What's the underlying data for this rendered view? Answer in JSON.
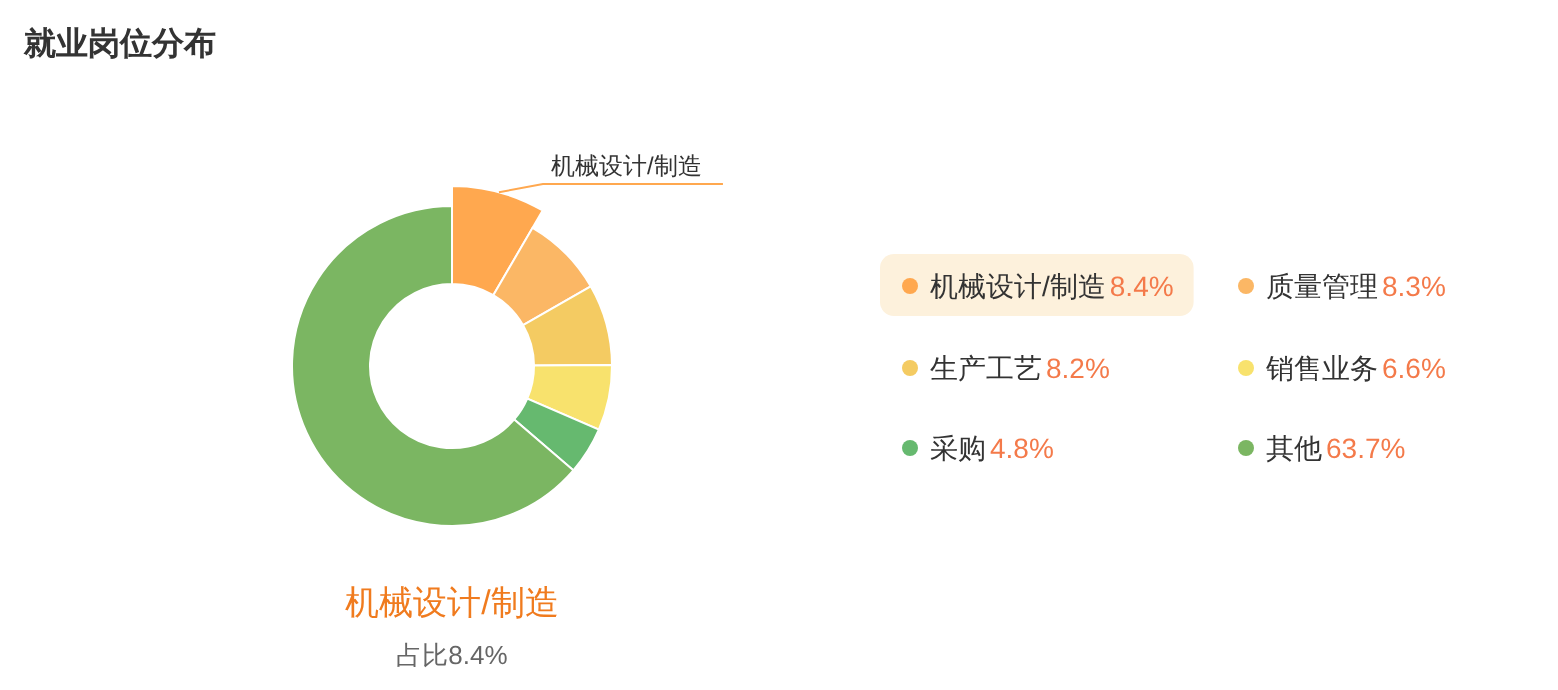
{
  "chart_data": {
    "type": "donut",
    "title": "就业岗位分布",
    "categories": [
      "机械设计/制造",
      "质量管理",
      "生产工艺",
      "销售业务",
      "采购",
      "其他"
    ],
    "values": [
      8.4,
      8.3,
      8.2,
      6.6,
      4.8,
      63.7
    ],
    "colors": [
      "#ffa84f",
      "#fbb765",
      "#f4cb62",
      "#f8e26d",
      "#66b96f",
      "#7bb662"
    ],
    "value_labels": [
      "8.4%",
      "8.3%",
      "8.2%",
      "6.6%",
      "4.8%",
      "63.7%"
    ],
    "legend": "right",
    "annotations": [
      {
        "text": "机械设计/制造",
        "x": "机械设计/制造"
      },
      "机械设计/制造",
      "占比8.4%"
    ]
  }
}
